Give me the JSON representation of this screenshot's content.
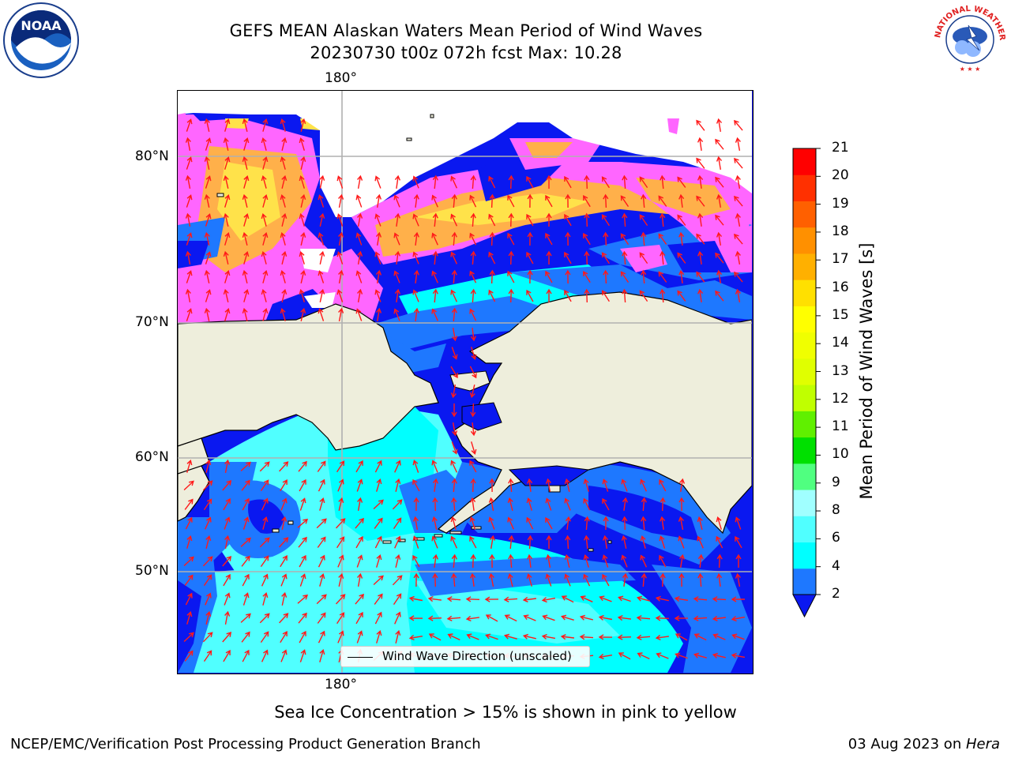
{
  "title": {
    "line1": "GEFS MEAN Alaskan Waters Mean Period of Wind Waves",
    "line2": "20230730 t00z 072h fcst   Max: 10.28"
  },
  "map": {
    "longitude_label_top": "180°",
    "longitude_label_bottom": "180°",
    "latitude_labels": [
      "80°N",
      "70°N",
      "60°N",
      "50°N"
    ],
    "legend_label": "Wind Wave Direction (unscaled)",
    "colors": {
      "land": "#eeeedc",
      "ocean_low": "#0a18f0",
      "ocean_mid": "#1e78ff",
      "ocean_cyan": "#00ffff",
      "ocean_lightcyan": "#50ffff",
      "ice_pink": "#ff66ff",
      "ice_orange": "#ffb04a",
      "ice_yellow": "#ffe24a",
      "arrow": "#ff1a1a",
      "grid": "#b0b0b0"
    }
  },
  "colorbar": {
    "label": "Mean Period of Wind Waves [s]",
    "ticks": [
      "2",
      "4",
      "6",
      "8",
      "9",
      "10",
      "11",
      "12",
      "13",
      "14",
      "15",
      "16",
      "17",
      "18",
      "19",
      "20",
      "21"
    ],
    "colors": [
      "#1e78ff",
      "#00ffff",
      "#50ffff",
      "#a0ffff",
      "#50ff80",
      "#00e000",
      "#60f000",
      "#c0ff00",
      "#e0ff00",
      "#f0ff00",
      "#ffff00",
      "#ffe000",
      "#ffb000",
      "#ff9000",
      "#ff6000",
      "#ff3000",
      "#ff0000"
    ],
    "extend_color": "#0a18f0"
  },
  "logos": {
    "noaa": "NOAA",
    "nws": "NATIONAL WEATHER SERVICE"
  },
  "footer": {
    "note": "Sea Ice Concentration > 15% is shown in pink to yellow",
    "credit": "NCEP/EMC/Verification Post Processing Product Generation Branch",
    "date": "03 Aug 2023 on ",
    "machine": "Hera"
  }
}
